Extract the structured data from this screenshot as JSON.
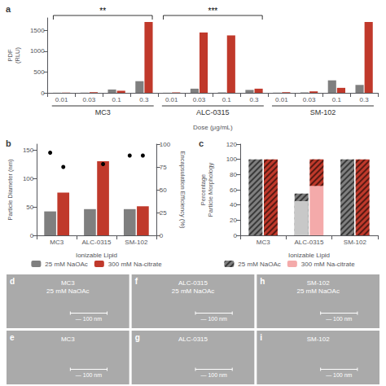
{
  "chart_data": [
    {
      "type": "bar",
      "title": "a",
      "groups": [
        {
          "name": "MC3",
          "categories": [
            "0.01",
            "0.03",
            "0.1",
            "0.3"
          ]
        },
        {
          "name": "ALC-0315",
          "categories": [
            "0.01",
            "0.03",
            "0.1",
            "0.3"
          ]
        },
        {
          "name": "SM-102",
          "categories": [
            "0.01",
            "0.03",
            "0.1",
            "0.3"
          ]
        }
      ],
      "series": [
        {
          "color": "#7f7f7f",
          "values": [
            3,
            5,
            80,
            280,
            3,
            100,
            10,
            70,
            5,
            10,
            300,
            190
          ]
        },
        {
          "color": "#c0392b",
          "values": [
            5,
            15,
            50,
            1700,
            10,
            1450,
            1380,
            100,
            15,
            35,
            120,
            1700
          ]
        }
      ],
      "xlabel": "Dose (μg/mL)",
      "ylabel": "PDF\n(RLU)",
      "ylim": [
        0,
        1800
      ],
      "yticks": [
        0,
        500,
        1000,
        1500
      ],
      "grid": false,
      "annotations": [
        {
          "text": "**",
          "group": "MC3"
        },
        {
          "text": "***",
          "group": "ALC-0315"
        }
      ]
    },
    {
      "type": "bar",
      "title": "b",
      "categories": [
        "MC3",
        "ALC-0315",
        "SM-102"
      ],
      "series": [
        {
          "name": "25 mM NaOAc",
          "color": "#7f7f7f",
          "values": [
            42,
            46,
            46
          ],
          "dots": {
            "color": "#000000",
            "values": [
              145,
              null,
              140
            ]
          }
        },
        {
          "name": "300 mM Na-citrate",
          "color": "#c0392b",
          "values": [
            75,
            130,
            51
          ],
          "dots": {
            "color": "#000000",
            "values": [
              120,
              125,
              140
            ]
          }
        }
      ],
      "xlabel": "Ionizable Lipid",
      "ylabel": "Particle Diameter (nm)",
      "y2label": "Encapsulation Efficiency (%)",
      "ylim": [
        0,
        160
      ],
      "yticks": [
        0,
        50,
        100,
        150
      ],
      "y2lim": [
        0,
        100
      ],
      "y2ticks": [
        0,
        25,
        50,
        75,
        100
      ],
      "grid": false,
      "legend": "bottom"
    },
    {
      "type": "bar",
      "title": "c",
      "categories": [
        "MC3",
        "ALC-0315",
        "SM-102"
      ],
      "series": [
        {
          "name": "25 mM NaOAc",
          "stacked": false,
          "segments": [
            {
              "color": "#7f7f7f",
              "line_style": "hatched",
              "values": [
                100,
                55,
                100
              ]
            },
            {
              "color": "#c8c8c8",
              "values": [
                0,
                45,
                0
              ]
            }
          ]
        },
        {
          "name": "300 mM Na-citrate",
          "stacked": true,
          "segments": [
            {
              "color": "#f4aaaa",
              "values": [
                0,
                65,
                0
              ]
            },
            {
              "color": "#c0392b",
              "line_style": "hatched",
              "values": [
                100,
                35,
                100
              ]
            }
          ]
        }
      ],
      "xlabel": "Ionizable Lipid",
      "ylabel": "Percentage\nParticle Morphology",
      "ylim": [
        0,
        120
      ],
      "yticks": [
        0,
        20,
        40,
        60,
        80,
        100,
        120
      ],
      "grid": false,
      "legend": "bottom"
    },
    {
      "type": "image",
      "color": "#aaaaaa",
      "panels": [
        [
          {
            "label": "d",
            "title": "MC3\n25 mM NaOAc",
            "annotation": "— 100 nm"
          },
          {
            "label": "f",
            "title": "ALC-0315\n25 mM NaOAc",
            "annotation": "— 100 nm"
          },
          {
            "label": "h",
            "title": "SM-102\n25 mM NaOAc",
            "annotation": "— 100 nm"
          }
        ],
        [
          {
            "label": "e",
            "title": "MC3",
            "annotation": "— 100 nm"
          },
          {
            "label": "g",
            "title": "ALC-0315",
            "annotation": "— 100 nm"
          },
          {
            "label": "i",
            "title": "SM-102",
            "annotation": "— 100 nm"
          }
        ]
      ]
    }
  ]
}
